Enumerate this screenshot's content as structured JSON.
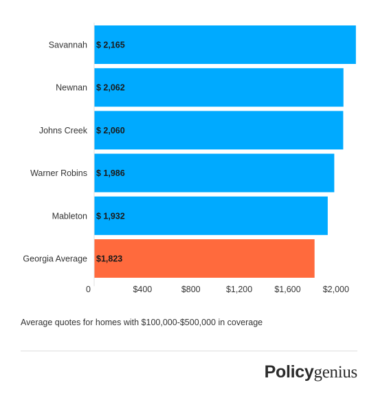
{
  "chart_data": {
    "type": "bar",
    "orientation": "horizontal",
    "categories": [
      "Savannah",
      "Newnan",
      "Johns Creek",
      "Warner Robins",
      "Mableton",
      "Georgia Average"
    ],
    "values": [
      2165,
      2062,
      2060,
      1986,
      1932,
      1823
    ],
    "value_labels": [
      "$ 2,165",
      "$ 2,062",
      "$ 2,060",
      "$ 1,986",
      "$ 1,932",
      "$1,823"
    ],
    "bar_colors": [
      "#00aaff",
      "#00aaff",
      "#00aaff",
      "#00aaff",
      "#00aaff",
      "#ff6a3d"
    ],
    "x_ticks": [
      {
        "value": 0,
        "label": "0"
      },
      {
        "value": 400,
        "label": "$400"
      },
      {
        "value": 800,
        "label": "$800"
      },
      {
        "value": 1200,
        "label": "$1,200"
      },
      {
        "value": 1600,
        "label": "$1,600"
      },
      {
        "value": 2000,
        "label": "$2,000"
      }
    ],
    "xlim": [
      0,
      2200
    ],
    "grid": false,
    "legend": "none"
  },
  "caption": "Average quotes for homes with $100,000-$500,000 in coverage",
  "logo": {
    "part1": "Policy",
    "part2": "genius"
  }
}
